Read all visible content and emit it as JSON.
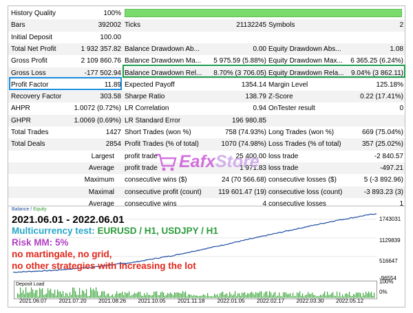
{
  "rows": [
    [
      "History Quality",
      "100%",
      "",
      "",
      "",
      ""
    ],
    [
      "Bars",
      "392002",
      "Ticks",
      "21132245",
      "Symbols",
      "2"
    ],
    [
      "Initial Deposit",
      "100.00",
      "",
      "",
      "",
      ""
    ],
    [
      "Total Net Profit",
      "1 932 357.82",
      "Balance Drawdown Ab...",
      "0.00",
      "Equity Drawdown Abs...",
      "1.08"
    ],
    [
      "Gross Profit",
      "2 109 860.76",
      "Balance Drawdown Ma...",
      "5 975.59 (5.88%)",
      "Equity Drawdown Max...",
      "6 365.25 (6.24%)"
    ],
    [
      "Gross Loss",
      "-177 502.94",
      "Balance Drawdown Rel...",
      "8.70% (3 706.05)",
      "Equity Drawdown Rela...",
      "9.04% (3 862.11)"
    ],
    [
      "Profit Factor",
      "11.89",
      "Expected Payoff",
      "1354.14",
      "Margin Level",
      "125.18%"
    ],
    [
      "Recovery Factor",
      "303.58",
      "Sharpe Ratio",
      "138.79",
      "Z-Score",
      "0.22 (17.41%)"
    ],
    [
      "AHPR",
      "1.0072 (0.72%)",
      "LR Correlation",
      "0.94",
      "OnTester result",
      "0"
    ],
    [
      "GHPR",
      "1.0069 (0.69%)",
      "LR Standard Error",
      "196 980.85",
      "",
      ""
    ],
    [
      "Total Trades",
      "1427",
      "Short Trades (won %)",
      "758 (74.93%)",
      "Long Trades (won %)",
      "669 (75.04%)"
    ],
    [
      "Total Deals",
      "2854",
      "Profit Trades (% of total)",
      "1070 (74.98%)",
      "Loss Trades (% of total)",
      "357 (25.02%)"
    ],
    [
      "Largest",
      "",
      "profit trade",
      "25 400.00",
      "loss trade",
      "-2 840.57"
    ],
    [
      "Average",
      "",
      "profit trade",
      "1 971.83",
      "loss trade",
      "-497.21"
    ],
    [
      "Maximum",
      "",
      "consecutive wins ($)",
      "24 (70 566.68)",
      "consecutive losses ($)",
      "5 (-3 892.96)"
    ],
    [
      "Maximal",
      "",
      "consecutive profit (count)",
      "119 601.47 (19)",
      "consecutive loss (count)",
      "-3 893.23 (3)"
    ],
    [
      "Average",
      "",
      "consecutive wins",
      "4",
      "consecutive losses",
      "1"
    ]
  ],
  "watermark": {
    "brand": "Eafx",
    "suffix": "Store"
  },
  "chart": {
    "legend_balance": "Balance",
    "legend_sep": " / ",
    "legend_equity": "Equity",
    "period": "2021.06.01 - 2022.06.01",
    "multi_label": "Multicurrency test: ",
    "multi_pairs": "EURUSD / H1, USDJPY / H1",
    "risk": "Risk MM: 5%",
    "note1": "no martingale, no grid,",
    "note2": "no other strategies with increasing the lot",
    "y_ticks": [
      "1743031",
      "1129839",
      "516647",
      "-96554"
    ],
    "deposit_label": "Deposit Load",
    "deposit_ticks": [
      "100%",
      "0%"
    ],
    "x_ticks": [
      "2021.06.07",
      "2021.07.20",
      "2021.08.26",
      "2021.10.05",
      "2021.11.18",
      "2022.01.05",
      "2022.02.17",
      "2022.03.30",
      "2022.05.12"
    ],
    "balance_color": "#1a4aa0"
  },
  "chart_data": {
    "type": "line",
    "x": [
      "2021.06.07",
      "2021.07.20",
      "2021.08.26",
      "2021.10.05",
      "2021.11.18",
      "2022.01.05",
      "2022.02.17",
      "2022.03.30",
      "2022.05.12",
      "2022.06.01"
    ],
    "series": [
      {
        "name": "Balance",
        "values": [
          0,
          60000,
          170000,
          330000,
          560000,
          840000,
          1130000,
          1420000,
          1700000,
          1932357
        ]
      }
    ],
    "ylim": [
      -96554,
      2030000
    ]
  }
}
